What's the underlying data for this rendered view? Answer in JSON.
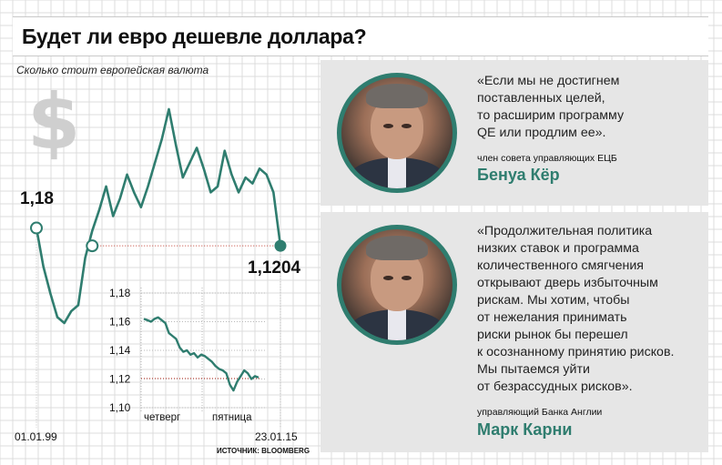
{
  "header": {
    "title": "Будет ли евро дешевле доллара?"
  },
  "subtitle": "Сколько стоит европейская валюта",
  "dollar_glyph": "$",
  "source": "ИСТОЧНИК: BLOOMBERG",
  "accent_color": "#2f7d6f",
  "colors": {
    "line": "#2f7d6f",
    "reference": "#c0392b",
    "card": "#e6e6e6"
  },
  "chart_data": [
    {
      "type": "line",
      "title": "",
      "x_start_label": "01.01.99",
      "x_end_label": "23.01.15",
      "start_value": 1.18,
      "end_value": 1.1204,
      "start_value_label": "1,18",
      "end_value_label": "1,1204",
      "values": [
        1.18,
        1.05,
        0.96,
        0.88,
        0.86,
        0.9,
        0.92,
        1.08,
        1.17,
        1.24,
        1.32,
        1.22,
        1.28,
        1.36,
        1.3,
        1.25,
        1.32,
        1.4,
        1.48,
        1.58,
        1.46,
        1.35,
        1.4,
        1.45,
        1.38,
        1.3,
        1.32,
        1.44,
        1.36,
        1.3,
        1.35,
        1.33,
        1.38,
        1.36,
        1.3,
        1.12
      ]
    },
    {
      "type": "line",
      "title": "",
      "y_ticks": [
        "1,18",
        "1,16",
        "1,14",
        "1,12",
        "1,10"
      ],
      "ylim": [
        1.1,
        1.18
      ],
      "x_labels": [
        "четверг",
        "пятница"
      ],
      "values": [
        1.162,
        1.161,
        1.16,
        1.162,
        1.163,
        1.161,
        1.159,
        1.152,
        1.15,
        1.148,
        1.142,
        1.139,
        1.14,
        1.137,
        1.138,
        1.135,
        1.137,
        1.136,
        1.134,
        1.132,
        1.129,
        1.127,
        1.126,
        1.124,
        1.116,
        1.112,
        1.118,
        1.122,
        1.126,
        1.124,
        1.12,
        1.122,
        1.121
      ]
    }
  ],
  "quotes": [
    {
      "text": "«Если мы не достигнем\nпоставленных целей,\nто расширим программу\nQE или продлим ее».",
      "role": "член совета управляющих ЕЦБ",
      "name": "Бенуа Кёр"
    },
    {
      "text": "«Продолжительная политика\nнизких ставок и программа\nколичественного смягчения\nоткрывают дверь избыточным\nрискам. Мы хотим, чтобы\nот нежелания принимать\nриски рынок бы перешел\nк осознанному принятию рисков.\nМы пытаемся уйти\nот безрассудных рисков».",
      "role": "управляющий Банка Англии",
      "name": "Марк Карни"
    }
  ]
}
